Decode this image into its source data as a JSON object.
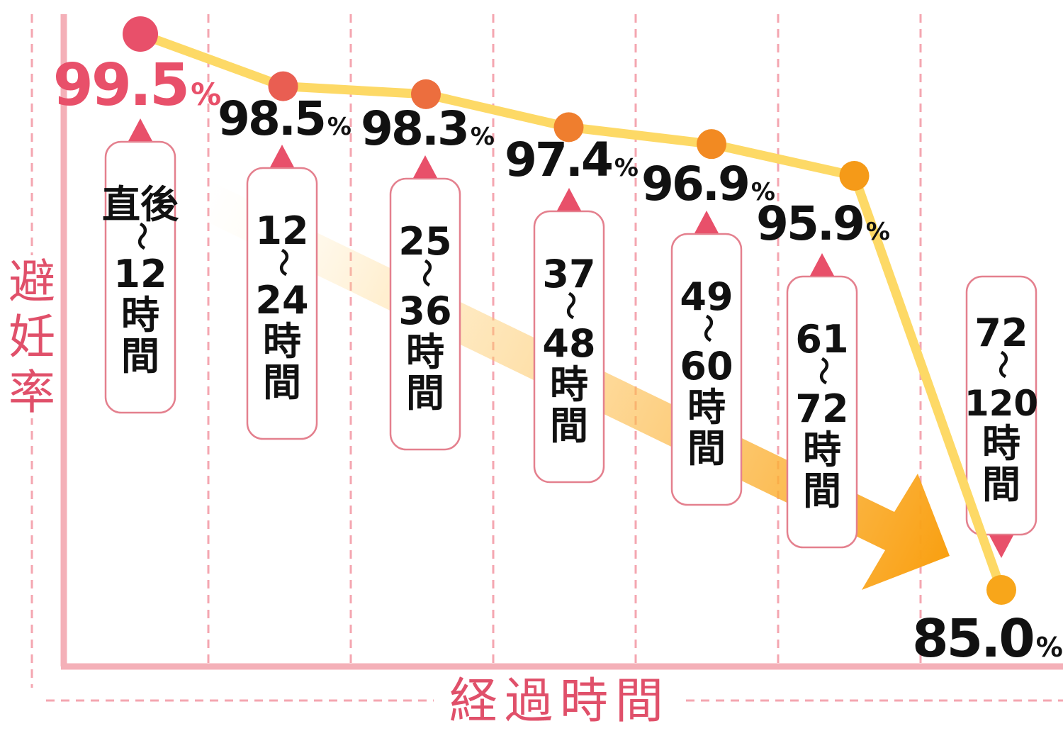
{
  "chart_data": {
    "type": "line",
    "categories": [
      [
        "直後",
        "〜",
        "12",
        "時",
        "間"
      ],
      [
        "12",
        "〜",
        "24",
        "時",
        "間"
      ],
      [
        "25",
        "〜",
        "36",
        "時",
        "間"
      ],
      [
        "37",
        "〜",
        "48",
        "時",
        "間"
      ],
      [
        "49",
        "〜",
        "60",
        "時",
        "間"
      ],
      [
        "61",
        "〜",
        "72",
        "時",
        "間"
      ],
      [
        "72",
        "〜",
        "120",
        "時",
        "間"
      ]
    ],
    "values": [
      99.5,
      98.5,
      98.3,
      97.4,
      96.9,
      95.9,
      85.0
    ],
    "value_labels": [
      "99.5",
      "98.5",
      "98.3",
      "97.4",
      "96.9",
      "95.9",
      "85.0"
    ],
    "unit": "%",
    "xlabel": "経過時間",
    "ylabel": "避妊率",
    "grid": true,
    "colors": {
      "line": "#fdd966",
      "axis": "#f4b0b8",
      "grid": "#f4a6b0",
      "label_text": "#e0506a",
      "callout_border": "#e4808e",
      "arrow_start": "#fff2d0",
      "arrow_end": "#f9a012",
      "points": [
        "#e8506a",
        "#e95e52",
        "#ec6e3e",
        "#ef7e2e",
        "#f28a22",
        "#f59a18",
        "#f8a61a"
      ],
      "first_value": "#e8506a",
      "other_values": "#111111"
    }
  }
}
